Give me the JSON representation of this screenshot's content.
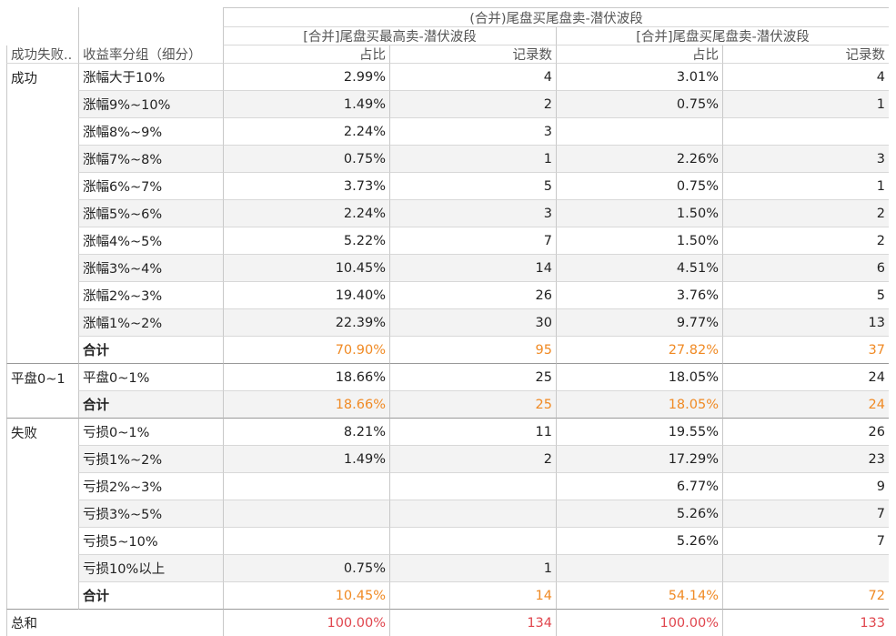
{
  "header": {
    "title": "(合并)尾盘买尾盘卖-潜伏波段",
    "groups": [
      "[合并]尾盘买最高卖-潜伏波段",
      "[合并]尾盘买尾盘卖-潜伏波段"
    ],
    "columns": [
      "成功失败..",
      "收益率分组（细分）",
      "占比",
      "记录数",
      "占比",
      "记录数"
    ]
  },
  "table": {
    "groups": [
      {
        "label": "成功",
        "rows": [
          [
            "涨幅大于10%",
            "2.99%",
            "4",
            "3.01%",
            "4"
          ],
          [
            "涨幅9%~10%",
            "1.49%",
            "2",
            "0.75%",
            "1"
          ],
          [
            "涨幅8%~9%",
            "2.24%",
            "3",
            null,
            null
          ],
          [
            "涨幅7%~8%",
            "0.75%",
            "1",
            "2.26%",
            "3"
          ],
          [
            "涨幅6%~7%",
            "3.73%",
            "5",
            "0.75%",
            "1"
          ],
          [
            "涨幅5%~6%",
            "2.24%",
            "3",
            "1.50%",
            "2"
          ],
          [
            "涨幅4%~5%",
            "5.22%",
            "7",
            "1.50%",
            "2"
          ],
          [
            "涨幅3%~4%",
            "10.45%",
            "14",
            "4.51%",
            "6"
          ],
          [
            "涨幅2%~3%",
            "19.40%",
            "26",
            "3.76%",
            "5"
          ],
          [
            "涨幅1%~2%",
            "22.39%",
            "30",
            "9.77%",
            "13"
          ]
        ],
        "subtotal": [
          "合计",
          "70.90%",
          "95",
          "27.82%",
          "37"
        ]
      },
      {
        "label": "平盘0~1",
        "rows": [
          [
            "平盘0~1%",
            "18.66%",
            "25",
            "18.05%",
            "24"
          ]
        ],
        "subtotal": [
          "合计",
          "18.66%",
          "25",
          "18.05%",
          "24"
        ]
      },
      {
        "label": "失败",
        "rows": [
          [
            "亏损0~1%",
            "8.21%",
            "11",
            "19.55%",
            "26"
          ],
          [
            "亏损1%~2%",
            "1.49%",
            "2",
            "17.29%",
            "23"
          ],
          [
            "亏损2%~3%",
            null,
            null,
            "6.77%",
            "9"
          ],
          [
            "亏损3%~5%",
            null,
            null,
            "5.26%",
            "7"
          ],
          [
            "亏损5~10%",
            null,
            null,
            "5.26%",
            "7"
          ],
          [
            "亏损10%以上",
            "0.75%",
            "1",
            null,
            null
          ]
        ],
        "subtotal": [
          "合计",
          "10.45%",
          "14",
          "54.14%",
          "72"
        ]
      }
    ],
    "total": [
      "总和",
      "100.00%",
      "134",
      "100.00%",
      "133"
    ]
  }
}
